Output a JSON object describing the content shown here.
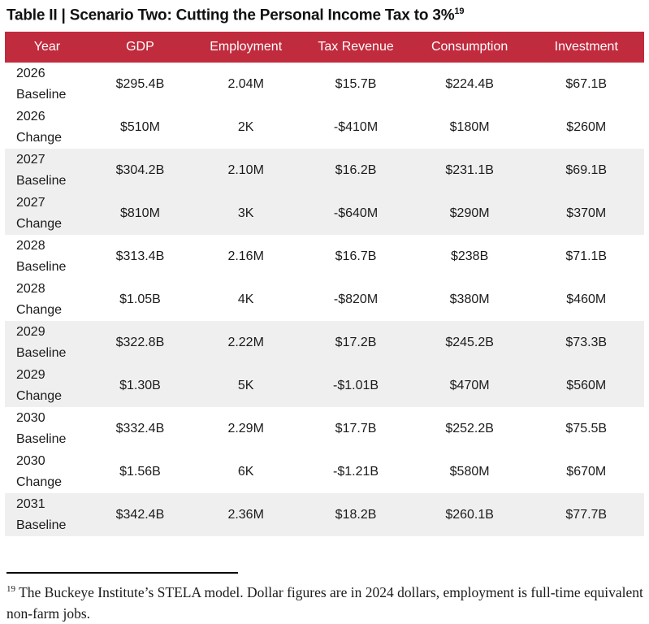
{
  "title": {
    "text": "Table II | Scenario Two: Cutting the Personal Income Tax to 3%",
    "superscript": "19"
  },
  "table": {
    "columns": [
      "Year",
      "GDP",
      "Employment",
      "Tax Revenue",
      "Consumption",
      "Investment"
    ],
    "rows": [
      {
        "year": "2026",
        "label": "Baseline",
        "gdp": "$295.4B",
        "employment": "2.04M",
        "tax_revenue": "$15.7B",
        "consumption": "$224.4B",
        "investment": "$67.1B",
        "shaded": false
      },
      {
        "year": "2026",
        "label": "Change",
        "gdp": "$510M",
        "employment": "2K",
        "tax_revenue": "-$410M",
        "consumption": "$180M",
        "investment": "$260M",
        "shaded": false
      },
      {
        "year": "2027",
        "label": "Baseline",
        "gdp": "$304.2B",
        "employment": "2.10M",
        "tax_revenue": "$16.2B",
        "consumption": "$231.1B",
        "investment": "$69.1B",
        "shaded": true
      },
      {
        "year": "2027",
        "label": "Change",
        "gdp": "$810M",
        "employment": "3K",
        "tax_revenue": "-$640M",
        "consumption": "$290M",
        "investment": "$370M",
        "shaded": true
      },
      {
        "year": "2028",
        "label": "Baseline",
        "gdp": "$313.4B",
        "employment": "2.16M",
        "tax_revenue": "$16.7B",
        "consumption": "$238B",
        "investment": "$71.1B",
        "shaded": false
      },
      {
        "year": "2028",
        "label": "Change",
        "gdp": "$1.05B",
        "employment": "4K",
        "tax_revenue": "-$820M",
        "consumption": "$380M",
        "investment": "$460M",
        "shaded": false
      },
      {
        "year": "2029",
        "label": "Baseline",
        "gdp": "$322.8B",
        "employment": "2.22M",
        "tax_revenue": "$17.2B",
        "consumption": "$245.2B",
        "investment": "$73.3B",
        "shaded": true
      },
      {
        "year": "2029",
        "label": "Change",
        "gdp": "$1.30B",
        "employment": "5K",
        "tax_revenue": "-$1.01B",
        "consumption": "$470M",
        "investment": "$560M",
        "shaded": true
      },
      {
        "year": "2030",
        "label": "Baseline",
        "gdp": "$332.4B",
        "employment": "2.29M",
        "tax_revenue": "$17.7B",
        "consumption": "$252.2B",
        "investment": "$75.5B",
        "shaded": false
      },
      {
        "year": "2030",
        "label": "Change",
        "gdp": "$1.56B",
        "employment": "6K",
        "tax_revenue": "-$1.21B",
        "consumption": "$580M",
        "investment": "$670M",
        "shaded": false
      },
      {
        "year": "2031",
        "label": "Baseline",
        "gdp": "$342.4B",
        "employment": "2.36M",
        "tax_revenue": "$18.2B",
        "consumption": "$260.1B",
        "investment": "$77.7B",
        "shaded": true
      }
    ]
  },
  "footnote": {
    "marker": "19",
    "text": "The Buckeye Institute’s STELA model. Dollar figures are in 2024 dollars, employment is full-time equivalent non-farm jobs."
  },
  "colors": {
    "header_bg": "#C12B3E",
    "header_text": "#FFFFFF",
    "row_shaded_bg": "#EFEFEF",
    "row_bg": "#FFFFFF",
    "body_text": "#1B1B1B"
  }
}
